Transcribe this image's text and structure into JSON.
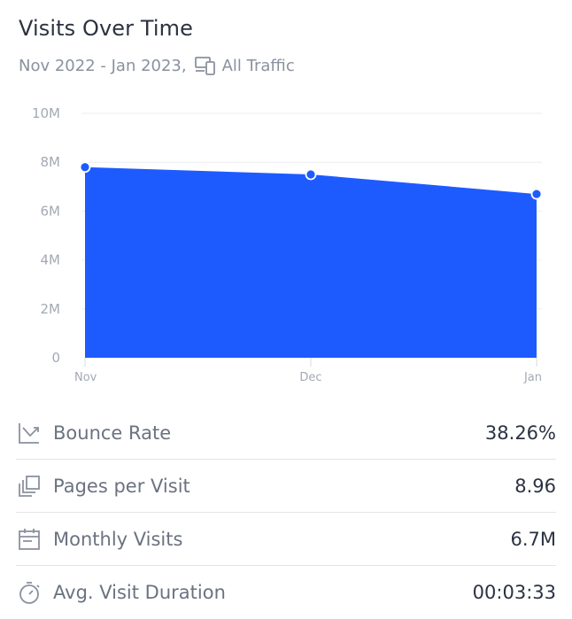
{
  "header": {
    "title": "Visits Over Time",
    "date_range": "Nov 2022 - Jan 2023,",
    "traffic_icon": "devices-icon",
    "traffic_label": "All Traffic"
  },
  "colors": {
    "area": "#1e5bff",
    "grid": "#eceef1",
    "tick": "#a3a9b3",
    "point_fill": "#1e5bff",
    "point_stroke": "#ffffff"
  },
  "chart_data": {
    "type": "area",
    "categories": [
      "Nov",
      "Dec",
      "Jan"
    ],
    "series": [
      {
        "values": [
          7800000,
          7500000,
          6700000
        ]
      }
    ],
    "yticks": [
      "0",
      "2M",
      "4M",
      "6M",
      "8M",
      "10M"
    ],
    "ylim": [
      0,
      10000000
    ],
    "grid": true
  },
  "metrics": [
    {
      "icon": "trend-arrow-icon",
      "label": "Bounce Rate",
      "value": "38.26%"
    },
    {
      "icon": "stacked-pages-icon",
      "label": "Pages per Visit",
      "value": "8.96"
    },
    {
      "icon": "calendar-icon",
      "label": "Monthly Visits",
      "value": "6.7M"
    },
    {
      "icon": "stopwatch-icon",
      "label": "Avg. Visit Duration",
      "value": "00:03:33"
    }
  ]
}
